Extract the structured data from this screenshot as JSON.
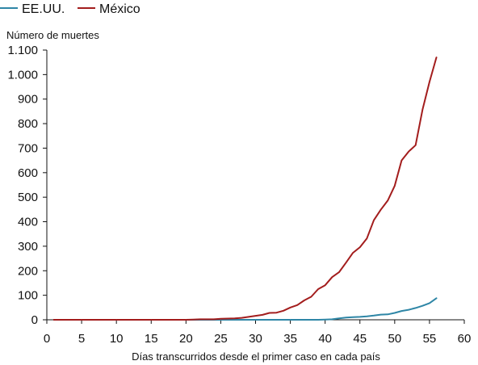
{
  "chart_data": {
    "type": "line",
    "xlabel": "Días transcurridos desde el primer caso en cada país",
    "ylabel": "Número de muertes",
    "xlim": [
      0,
      60
    ],
    "ylim": [
      0,
      1100
    ],
    "x_ticks": [
      0,
      5,
      10,
      15,
      20,
      25,
      30,
      35,
      40,
      45,
      50,
      55,
      60
    ],
    "y_ticks": [
      0,
      100,
      200,
      300,
      400,
      500,
      600,
      700,
      800,
      900,
      1000,
      1100
    ],
    "x_tick_labels": [
      "0",
      "5",
      "10",
      "15",
      "20",
      "25",
      "30",
      "35",
      "40",
      "45",
      "50",
      "55",
      "60"
    ],
    "y_tick_labels": [
      "0",
      "100",
      "200",
      "300",
      "400",
      "500",
      "600",
      "700",
      "800",
      "900",
      "1.000",
      "1.100"
    ],
    "grid": false,
    "legend_position": "top-left",
    "series": [
      {
        "name": "EE.UU.",
        "color": "#2e86a6",
        "x": [
          1,
          2,
          3,
          4,
          5,
          6,
          7,
          8,
          9,
          10,
          11,
          12,
          13,
          14,
          15,
          16,
          17,
          18,
          19,
          20,
          21,
          22,
          23,
          24,
          25,
          26,
          27,
          28,
          29,
          30,
          31,
          32,
          33,
          34,
          35,
          36,
          37,
          38,
          39,
          40,
          41,
          42,
          43,
          44,
          45,
          46,
          47,
          48,
          49,
          50,
          51,
          52,
          53,
          54,
          55,
          56
        ],
        "values": [
          0,
          0,
          0,
          0,
          0,
          0,
          0,
          0,
          0,
          0,
          0,
          0,
          0,
          0,
          0,
          0,
          0,
          0,
          0,
          0,
          0,
          0,
          0,
          0,
          0,
          0,
          0,
          0,
          0,
          0,
          0,
          0,
          0,
          0,
          0,
          0,
          0,
          0,
          0,
          1,
          2,
          6,
          9,
          11,
          12,
          14,
          17,
          21,
          22,
          28,
          36,
          41,
          48,
          57,
          68,
          88
        ]
      },
      {
        "name": "México",
        "color": "#a31d1d",
        "x": [
          1,
          2,
          3,
          4,
          5,
          6,
          7,
          8,
          9,
          10,
          11,
          12,
          13,
          14,
          15,
          16,
          17,
          18,
          19,
          20,
          21,
          22,
          23,
          24,
          25,
          26,
          27,
          28,
          29,
          30,
          31,
          32,
          33,
          34,
          35,
          36,
          37,
          38,
          39,
          40,
          41,
          42,
          43,
          44,
          45,
          46,
          47,
          48,
          49,
          50,
          51,
          52,
          53,
          54,
          55,
          56
        ],
        "values": [
          0,
          0,
          0,
          0,
          0,
          0,
          0,
          0,
          0,
          0,
          0,
          0,
          0,
          0,
          0,
          0,
          0,
          0,
          0,
          0,
          1,
          2,
          2,
          2,
          4,
          5,
          6,
          8,
          12,
          16,
          20,
          28,
          29,
          37,
          50,
          60,
          79,
          94,
          125,
          141,
          174,
          194,
          233,
          273,
          296,
          332,
          406,
          449,
          486,
          546,
          650,
          686,
          712,
          857,
          970,
          1070
        ]
      }
    ]
  }
}
